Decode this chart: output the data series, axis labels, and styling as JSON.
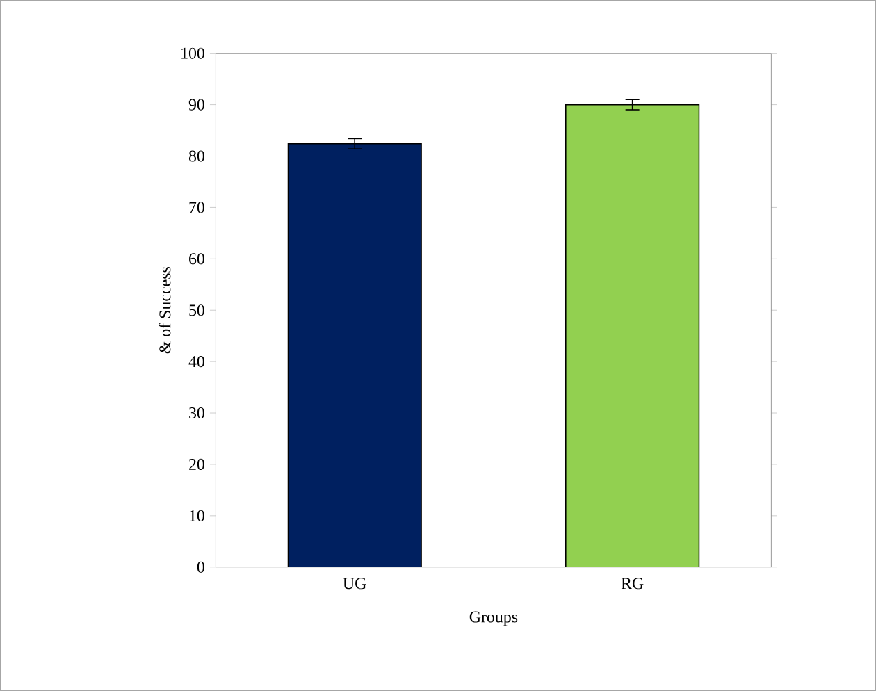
{
  "chart_data": {
    "type": "bar",
    "xlabel": "Groups",
    "ylabel": "& of Success",
    "categories": [
      "UG",
      "RG"
    ],
    "values": [
      82.4,
      90
    ],
    "errors": [
      1,
      1
    ],
    "colors": [
      "#002060",
      "#92d050"
    ],
    "ylim": [
      0,
      100
    ],
    "yticks": [
      0,
      10,
      20,
      30,
      40,
      50,
      60,
      70,
      80,
      90,
      100
    ],
    "grid": false
  }
}
